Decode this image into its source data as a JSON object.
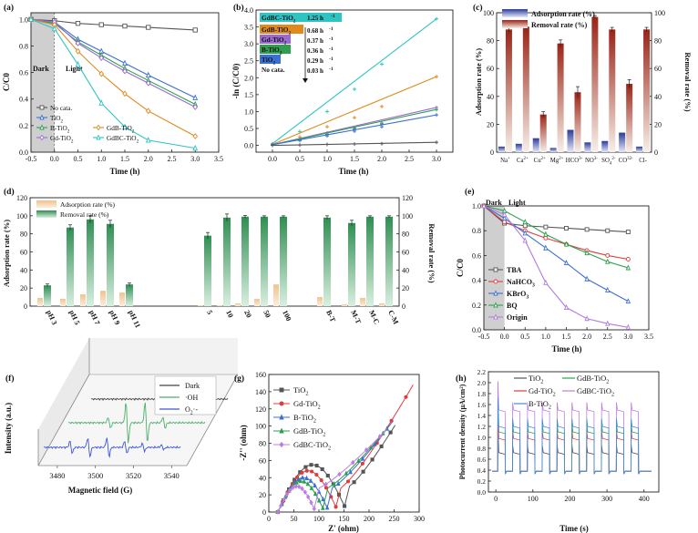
{
  "chart_data": [
    {
      "id": "a",
      "panel_label": "(a)",
      "type": "line",
      "xlabel": "Time (h)",
      "ylabel": "C/C0",
      "xlim": [
        -0.5,
        3.5
      ],
      "ylim": [
        0.0,
        1.05
      ],
      "xticks": [
        -0.5,
        0.0,
        0.5,
        1.0,
        1.5,
        2.0,
        2.5,
        3.0,
        3.5
      ],
      "yticks": [
        0.0,
        0.2,
        0.4,
        0.6,
        0.8,
        1.0
      ],
      "region_labels": [
        "Dark",
        "Light"
      ],
      "legend": {
        "position": "bottom-left",
        "columns": 2
      },
      "x": [
        -0.5,
        0.0,
        0.5,
        1.0,
        1.5,
        2.0,
        3.0
      ],
      "series": [
        {
          "name": "No cata.",
          "color": "#555555",
          "marker": "square",
          "values": [
            1.0,
            0.99,
            0.97,
            0.96,
            0.95,
            0.94,
            0.92
          ]
        },
        {
          "name": "TiO2",
          "color": "#3b6fd6",
          "marker": "triangle",
          "values": [
            1.0,
            0.98,
            0.85,
            0.76,
            0.67,
            0.58,
            0.41
          ]
        },
        {
          "name": "B-TiO2",
          "color": "#2e9e4f",
          "marker": "triangle",
          "values": [
            1.0,
            0.97,
            0.83,
            0.73,
            0.63,
            0.54,
            0.36
          ]
        },
        {
          "name": "Gd-TiO2",
          "color": "#9a6ad0",
          "marker": "diamond",
          "values": [
            1.0,
            0.98,
            0.82,
            0.71,
            0.61,
            0.52,
            0.34
          ]
        },
        {
          "name": "GdB-TiO2",
          "color": "#e08a1e",
          "marker": "diamond",
          "values": [
            1.0,
            0.96,
            0.76,
            0.59,
            0.44,
            0.31,
            0.12
          ]
        },
        {
          "name": "GdBC-TiO2",
          "color": "#2ec4c4",
          "marker": "triangle",
          "values": [
            1.0,
            0.93,
            0.66,
            0.37,
            0.19,
            0.09,
            0.03
          ]
        }
      ]
    },
    {
      "id": "b",
      "panel_label": "(b)",
      "type": "scatter",
      "xlabel": "Time (h)",
      "ylabel": "-ln (C/C0)",
      "xlim": [
        -0.3,
        3.3
      ],
      "ylim": [
        -0.2,
        4.0
      ],
      "xticks": [
        0.0,
        0.5,
        1.0,
        1.5,
        2.0,
        2.5,
        3.0
      ],
      "yticks": [
        0.0,
        0.5,
        1.0,
        1.5,
        2.0,
        2.5,
        3.0,
        3.5,
        4.0
      ],
      "fit_lines": true,
      "x": [
        0.0,
        0.5,
        1.0,
        1.5,
        2.0,
        3.0
      ],
      "series": [
        {
          "name": "GdBC-TiO2",
          "rate": "1.25 h-1",
          "color": "#2ec4c4",
          "values": [
            0.05,
            0.41,
            1.0,
            1.66,
            2.4,
            3.74
          ]
        },
        {
          "name": "GdB-TiO2",
          "rate": "0.68 h-1",
          "color": "#e08a1e",
          "values": [
            0.03,
            0.25,
            0.55,
            0.82,
            1.15,
            2.03
          ]
        },
        {
          "name": "Gd-TiO2",
          "rate": "0.37 h-1",
          "color": "#9a6ad0",
          "values": [
            0.02,
            0.18,
            0.37,
            0.52,
            0.66,
            1.12
          ]
        },
        {
          "name": "B-TiO2",
          "rate": "0.36 h-1",
          "color": "#2e9e4f",
          "values": [
            0.02,
            0.17,
            0.33,
            0.49,
            0.63,
            1.06
          ]
        },
        {
          "name": "TiO2",
          "rate": "0.29 h-1",
          "color": "#3b6fd6",
          "values": [
            0.02,
            0.14,
            0.28,
            0.42,
            0.55,
            0.9
          ]
        },
        {
          "name": "No cata.",
          "rate": "0.03 h-1",
          "color": "#555555",
          "values": [
            0.0,
            0.01,
            0.03,
            0.04,
            0.05,
            0.09
          ]
        }
      ]
    },
    {
      "id": "c",
      "panel_label": "(c)",
      "type": "bar",
      "ylabel": "Adsorption rate (%)",
      "y2label": "Removal rate (%)",
      "ylim": [
        0,
        100
      ],
      "y2lim": [
        0,
        100
      ],
      "yticks": [
        0,
        20,
        40,
        60,
        80,
        100
      ],
      "categories": [
        "Na+",
        "Ca2+",
        "Cu2+",
        "Mg2+",
        "HCO3-",
        "NO3-",
        "SO42-",
        "CO32-",
        "Cl-"
      ],
      "legend": {
        "position": "top"
      },
      "series": [
        {
          "name": "Adsorption rate (%)",
          "axis": "left",
          "color": "#3a4fa8",
          "values": [
            4,
            6,
            10,
            3,
            16,
            7,
            8,
            14,
            4
          ],
          "errors": [
            0.6,
            0.6,
            0.8,
            0.6,
            0.8,
            0.6,
            0.6,
            0.8,
            0.6
          ]
        },
        {
          "name": "Removal rate (%)",
          "axis": "right",
          "color": "#a02818",
          "values": [
            88,
            90,
            27,
            78,
            43,
            97,
            88,
            49,
            88
          ],
          "errors": [
            2,
            2,
            2,
            2.5,
            4,
            1,
            1.5,
            3,
            1.5
          ]
        }
      ]
    },
    {
      "id": "d",
      "panel_label": "(d)",
      "type": "bar",
      "ylabel": "Adsorption rate (%)",
      "y2label": "Removal rate (%)",
      "ylim": [
        0,
        120
      ],
      "y2lim": [
        0,
        120
      ],
      "yticks": [
        0,
        20,
        40,
        60,
        80,
        100,
        120
      ],
      "legend": {
        "position": "top-left"
      },
      "categories": [
        "pH 3",
        "pH 5",
        "pH 7",
        "pH 9",
        "pH 11",
        "5",
        "10",
        "20",
        "50",
        "100",
        "B-T",
        "M-T",
        "M-C",
        "C-M"
      ],
      "groups": [
        5,
        5,
        4
      ],
      "series": [
        {
          "name": "Adsorption rate (%)",
          "axis": "left",
          "color": "#f0c89a",
          "values": [
            9,
            8,
            13,
            17,
            15,
            1,
            1,
            3,
            8,
            24,
            10,
            2,
            9,
            3
          ]
        },
        {
          "name": "Removal rate (%)",
          "axis": "right",
          "color": "#3e9c5c",
          "values": [
            23,
            87,
            96,
            91,
            24,
            78,
            98,
            99,
            99,
            99,
            98,
            92,
            99,
            99
          ],
          "errors": [
            1.5,
            3,
            4,
            4,
            1.5,
            3.5,
            4,
            1.5,
            1,
            1,
            2,
            3,
            1,
            1
          ]
        }
      ]
    },
    {
      "id": "e",
      "panel_label": "(e)",
      "type": "line",
      "xlabel": "Time (h)",
      "ylabel": "C/C0",
      "xlim": [
        -0.5,
        3.5
      ],
      "ylim": [
        0.0,
        1.0
      ],
      "xticks": [
        -0.5,
        0.0,
        0.5,
        1.0,
        1.5,
        2.0,
        2.5,
        3.0,
        3.5
      ],
      "yticks": [
        0.0,
        0.2,
        0.4,
        0.6,
        0.8,
        1.0
      ],
      "region_labels": [
        "Dark",
        "Light"
      ],
      "legend": {
        "position": "bottom-left"
      },
      "x": [
        -0.5,
        0.0,
        0.5,
        1.0,
        1.5,
        2.0,
        2.5,
        3.0
      ],
      "series": [
        {
          "name": "TBA",
          "color": "#555555",
          "marker": "square",
          "values": [
            1.0,
            0.86,
            0.84,
            0.83,
            0.82,
            0.81,
            0.8,
            0.79
          ]
        },
        {
          "name": "NaHCO3",
          "color": "#e23b3b",
          "marker": "circle",
          "values": [
            1.0,
            0.87,
            0.8,
            0.74,
            0.69,
            0.64,
            0.6,
            0.57
          ]
        },
        {
          "name": "KBrO3",
          "color": "#3b6fd6",
          "marker": "triangle",
          "values": [
            1.0,
            0.9,
            0.78,
            0.66,
            0.54,
            0.41,
            0.32,
            0.23
          ]
        },
        {
          "name": "BQ",
          "color": "#2e9e4f",
          "marker": "triangle",
          "values": [
            1.0,
            0.96,
            0.87,
            0.77,
            0.69,
            0.62,
            0.55,
            0.5
          ]
        },
        {
          "name": "Origin",
          "color": "#b07ce0",
          "marker": "triangle",
          "values": [
            1.0,
            0.93,
            0.72,
            0.38,
            0.18,
            0.09,
            0.05,
            0.02
          ]
        }
      ]
    },
    {
      "id": "f",
      "panel_label": "(f)",
      "type": "line",
      "xlabel": "Magnetic field (G)",
      "ylabel": "Intensity (a.u.)",
      "xticks": [
        3480,
        3500,
        3520,
        3540
      ],
      "legend": {
        "position": "top-right"
      },
      "series": [
        {
          "name": "Dark",
          "color": "#444444"
        },
        {
          "name": "·OH",
          "color": "#4caf6a"
        },
        {
          "name": "O2·-",
          "color": "#3b56d6"
        }
      ]
    },
    {
      "id": "g",
      "panel_label": "(g)",
      "type": "line",
      "xlabel": "Z' (ohm)",
      "ylabel": "-Z'' (ohm)",
      "xlim": [
        0,
        300
      ],
      "ylim": [
        0,
        160
      ],
      "xticks": [
        0,
        50,
        100,
        150,
        200,
        250,
        300
      ],
      "yticks": [
        0,
        20,
        40,
        60,
        80,
        100,
        120,
        140,
        160
      ],
      "legend": {
        "position": "top-left"
      },
      "series": [
        {
          "name": "TiO2",
          "color": "#555555",
          "marker": "square",
          "peak": [
            95,
            55
          ],
          "end": [
            252,
            101
          ]
        },
        {
          "name": "Gd-TiO2",
          "color": "#e23b3b",
          "marker": "circle",
          "peak": [
            85,
            48
          ],
          "end": [
            288,
            148
          ]
        },
        {
          "name": "B-TiO2",
          "color": "#3b6fd6",
          "marker": "triangle",
          "peak": [
            75,
            40
          ],
          "end": [
            248,
            106
          ]
        },
        {
          "name": "GdB-TiO2",
          "color": "#2e9e4f",
          "marker": "triangle",
          "peak": [
            70,
            36
          ],
          "end": [
            240,
            100
          ]
        },
        {
          "name": "GdBC-TiO2",
          "color": "#c07ce0",
          "marker": "diamond",
          "peak": [
            60,
            30
          ],
          "end": [
            235,
            96
          ]
        }
      ]
    },
    {
      "id": "h",
      "panel_label": "(h)",
      "type": "line",
      "xlabel": "Time (s)",
      "ylabel": "Photocurrent density (μA/cm²)",
      "xlim": [
        -20,
        440
      ],
      "ylim": [
        0.0,
        2.2
      ],
      "xticks": [
        0,
        100,
        200,
        300,
        400
      ],
      "yticks": [
        0.0,
        0.2,
        0.4,
        0.6,
        0.8,
        1.0,
        1.2,
        1.4,
        1.6,
        1.8,
        2.0,
        2.2
      ],
      "legend": {
        "position": "top",
        "columns": 2
      },
      "series": [
        {
          "name": "TiO2",
          "color": "#555555",
          "on_level": 0.72,
          "off_level": 0.38
        },
        {
          "name": "GdB-TiO2",
          "color": "#2e9e4f",
          "on_level": 1.1,
          "off_level": 0.38
        },
        {
          "name": "Gd-TiO2",
          "color": "#e23b3b",
          "on_level": 0.98,
          "off_level": 0.38
        },
        {
          "name": "GdBC-TiO2",
          "color": "#c07ce0",
          "on_level": 1.5,
          "off_level": 0.38
        },
        {
          "name": "B-TiO2",
          "color": "#3b8fd6",
          "on_level": 1.2,
          "off_level": 0.38
        }
      ]
    }
  ]
}
